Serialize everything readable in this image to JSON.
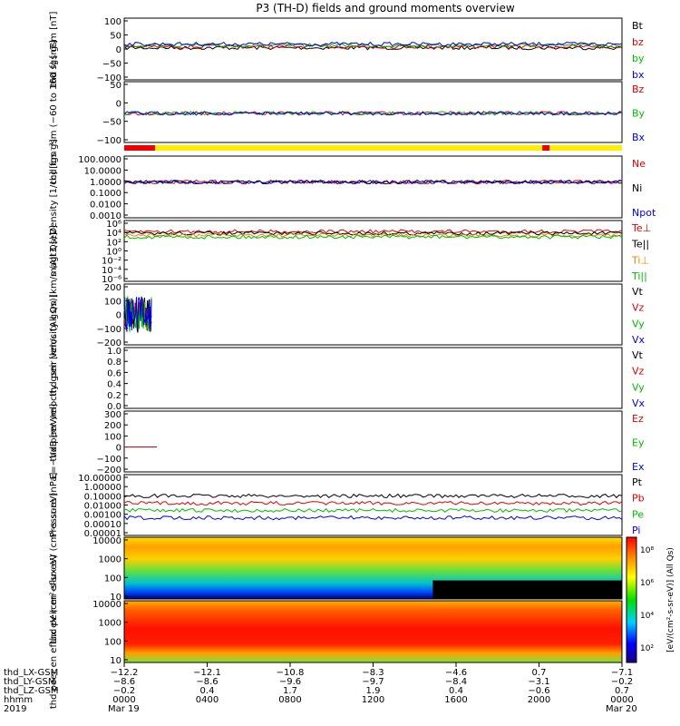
{
  "title": "P3 (TH-D) fields and ground moments overview",
  "chart_data": [
    {
      "type": "line",
      "ylabel": "thd fgs gsm [nT]",
      "ylim": [
        -100,
        100
      ],
      "yticks": [
        "100",
        "50",
        "0",
        "−50",
        "−100"
      ],
      "legend": [
        "Bt",
        "bz",
        "by",
        "bx"
      ],
      "legend_colors": [
        "#000000",
        "#dd0000",
        "#00bb00",
        "#0000dd"
      ]
    },
    {
      "type": "line",
      "ylabel": "thd fgs gsm (−60 to 160 s) [nT]",
      "ylim": [
        -125,
        50
      ],
      "yticks": [
        "50",
        "0",
        "−50",
        "−100"
      ],
      "legend": [
        "Bz",
        "By",
        "Bx"
      ],
      "legend_colors": [
        "#dd0000",
        "#00bb00",
        "#0000dd"
      ]
    },
    {
      "type": "line",
      "ylabel": "Density [1/cc] [cm⁻³]",
      "ylim": [
        0.0001,
        1000
      ],
      "log": true,
      "yticks": [
        "100.0000",
        "10.0000",
        "1.0000",
        "0.1000",
        "0.0100",
        "0.0010"
      ],
      "legend": [
        "Ne",
        "Ni",
        "Npot"
      ],
      "legend_colors": [
        "#dd0000",
        "#000000",
        "#0000dd"
      ]
    },
    {
      "type": "line",
      "ylabel": "magt3 [eV]",
      "log": true,
      "yticks": [
        "10⁶",
        "10⁴",
        "10²",
        "10⁰",
        "10⁻²",
        "10⁻⁴",
        "10⁻⁶"
      ],
      "legend": [
        "Te⊥",
        "Te||",
        "Ti⊥",
        "Ti||"
      ],
      "legend_colors": [
        "#dd0000",
        "#000000",
        "#dd8800",
        "#00bb00"
      ]
    },
    {
      "type": "line",
      "ylabel": "thd peir velocity gsm [km/s (All Qs)]",
      "ylim": [
        -200,
        200
      ],
      "yticks": [
        "200",
        "100",
        "0",
        "−100",
        "−200"
      ],
      "legend": [
        "Vt",
        "Vz",
        "Vy",
        "Vx"
      ],
      "legend_colors": [
        "#000000",
        "#dd0000",
        "#00bb00",
        "#0000dd"
      ]
    },
    {
      "type": "line",
      "ylabel": "thd peer velocity gsm [km/s (All Qs)]",
      "ylim": [
        0,
        1
      ],
      "yticks": [
        "1.0",
        "0.8",
        "0.6",
        "0.4",
        "0.2",
        "0.0"
      ],
      "legend": [
        "Vt",
        "Vz",
        "Vy",
        "Vx"
      ],
      "legend_colors": [
        "#000000",
        "#dd0000",
        "#00bb00",
        "#0000dd"
      ]
    },
    {
      "type": "line",
      "ylabel": "E=−VxB [mV/m]",
      "ylim": [
        -200,
        300
      ],
      "yticks": [
        "300",
        "200",
        "100",
        "0",
        "−100",
        "−200"
      ],
      "legend": [
        "Ez",
        "Ey",
        "Ex"
      ],
      "legend_colors": [
        "#dd0000",
        "#00bb00",
        "#0000dd"
      ]
    },
    {
      "type": "line",
      "ylabel": "Pressure [nPa]",
      "log": true,
      "yticks": [
        "10.00000",
        "1.00000",
        "0.10000",
        "0.01000",
        "0.00100",
        "0.00010",
        "0.00001"
      ],
      "legend": [
        "Pt",
        "Pb",
        "Pe",
        "Pi"
      ],
      "legend_colors": [
        "#000000",
        "#dd0000",
        "#00bb00",
        "#0000dd"
      ]
    },
    {
      "type": "heatmap",
      "ylabel": "thd peir en eflux eV (cm²-s-sr-eV)",
      "log": true,
      "yticks": [
        "10000",
        "1000",
        "100",
        "10"
      ]
    },
    {
      "type": "heatmap",
      "ylabel": "thd peer en eflux eV (cm²-s-sr-eV)",
      "log": true,
      "yticks": [
        "10000",
        "1000",
        "100",
        "10"
      ]
    }
  ],
  "colorbar": {
    "ticks": [
      "10⁸",
      "10⁶",
      "10⁴",
      "10²"
    ],
    "label": "[eV/(cm²-s-sr-eV)]  (All Qs)"
  },
  "xaxis": {
    "row_labels": [
      "thd_LX-GSM",
      "thd_LY-GSM",
      "thd_LZ-GSM",
      "hhmm",
      "2019"
    ],
    "columns": [
      [
        "−12.2",
        "−8.6",
        "−0.2",
        "0000",
        "Mar 19"
      ],
      [
        "−12.1",
        "−8.6",
        "0.4",
        "0400",
        ""
      ],
      [
        "−10.8",
        "−9.6",
        "1.7",
        "0800",
        ""
      ],
      [
        "−8.3",
        "−9.7",
        "1.9",
        "1200",
        ""
      ],
      [
        "−4.6",
        "−8.4",
        "0.4",
        "1600",
        ""
      ],
      [
        "0.7",
        "−3.1",
        "−0.6",
        "2000",
        ""
      ],
      [
        "−7.1",
        "−0.2",
        "0.7",
        "0000",
        "Mar 20"
      ]
    ]
  }
}
